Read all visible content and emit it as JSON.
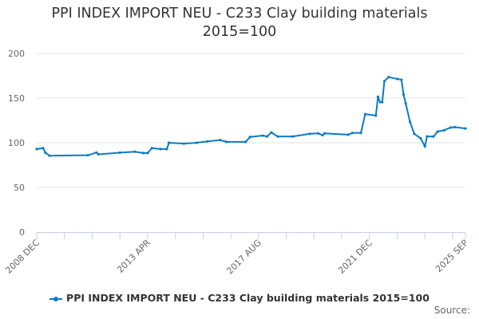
{
  "chart_data": {
    "type": "line",
    "title_line1": "PPI INDEX IMPORT NEU - C233 Clay building materials",
    "title_line2": "2015=100",
    "xlabel": "",
    "ylabel": "",
    "ylim": [
      0,
      200
    ],
    "yticks": [
      "0",
      "50",
      "100",
      "150",
      "200"
    ],
    "x_start": "2008-12",
    "x_end": "2025-09",
    "xtick_labels": [
      "2008 DEC",
      "2013 APR",
      "2017 AUG",
      "2021 DEC",
      "2025 SEP"
    ],
    "grid": true,
    "legend_position": "bottom",
    "color": "#0a7cc4",
    "series": [
      {
        "name": "PPI INDEX IMPORT NEU - C233 Clay building materials 2015=100",
        "points": [
          [
            "2008-12",
            93
          ],
          [
            "2009-03",
            94
          ],
          [
            "2009-04",
            89
          ],
          [
            "2009-06",
            85.5
          ],
          [
            "2010-12",
            86
          ],
          [
            "2011-04",
            89
          ],
          [
            "2011-05",
            87
          ],
          [
            "2012-03",
            89
          ],
          [
            "2012-10",
            90
          ],
          [
            "2013-02",
            88.5
          ],
          [
            "2013-04",
            88.5
          ],
          [
            "2013-06",
            94
          ],
          [
            "2013-10",
            93
          ],
          [
            "2014-01",
            93
          ],
          [
            "2014-02",
            100
          ],
          [
            "2014-09",
            99
          ],
          [
            "2015-03",
            100
          ],
          [
            "2015-08",
            101.5
          ],
          [
            "2016-02",
            103
          ],
          [
            "2016-05",
            101
          ],
          [
            "2017-02",
            101
          ],
          [
            "2017-04",
            106.5
          ],
          [
            "2017-10",
            108
          ],
          [
            "2017-12",
            107
          ],
          [
            "2018-02",
            111.5
          ],
          [
            "2018-05",
            107
          ],
          [
            "2018-12",
            107
          ],
          [
            "2019-08",
            110
          ],
          [
            "2019-12",
            110.5
          ],
          [
            "2020-02",
            108.5
          ],
          [
            "2020-03",
            110.5
          ],
          [
            "2021-02",
            109
          ],
          [
            "2021-04",
            111
          ],
          [
            "2021-08",
            111
          ],
          [
            "2021-10",
            132
          ],
          [
            "2022-03",
            130.5
          ],
          [
            "2022-04",
            151.5
          ],
          [
            "2022-05",
            145.5
          ],
          [
            "2022-06",
            145.5
          ],
          [
            "2022-07",
            169
          ],
          [
            "2022-09",
            173.5
          ],
          [
            "2023-01",
            171.5
          ],
          [
            "2023-03",
            170.5
          ],
          [
            "2023-04",
            154
          ],
          [
            "2023-05",
            144
          ],
          [
            "2023-07",
            123.5
          ],
          [
            "2023-09",
            110
          ],
          [
            "2023-12",
            105
          ],
          [
            "2024-02",
            96
          ],
          [
            "2024-03",
            107
          ],
          [
            "2024-06",
            107
          ],
          [
            "2024-08",
            112.5
          ],
          [
            "2024-11",
            114
          ],
          [
            "2025-02",
            117
          ],
          [
            "2025-04",
            117.5
          ],
          [
            "2025-09",
            116
          ]
        ]
      }
    ],
    "source_label": "Source:"
  }
}
